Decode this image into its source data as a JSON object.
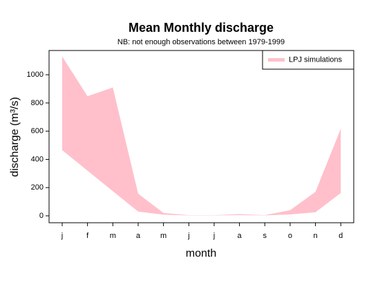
{
  "chart_data": {
    "type": "band",
    "title": "Mean Monthly discharge",
    "subtitle": "NB: not enough observations between 1979-1999",
    "x_label": "month",
    "y_label": "discharge (m³/s)",
    "categories": [
      "j",
      "f",
      "m",
      "a",
      "m",
      "j",
      "j",
      "a",
      "s",
      "o",
      "n",
      "d"
    ],
    "series": [
      {
        "name": "LPJ simulations",
        "color": "#ffc0cb",
        "high": [
          1130,
          848,
          910,
          157,
          20,
          5,
          5,
          12,
          5,
          40,
          170,
          618
        ],
        "low": [
          466,
          320,
          175,
          30,
          8,
          3,
          3,
          5,
          3,
          10,
          25,
          162
        ]
      }
    ],
    "ylim": [
      -49,
      1172
    ],
    "yticks": [
      0,
      200,
      400,
      600,
      800,
      1000
    ],
    "legend": "top-right"
  }
}
